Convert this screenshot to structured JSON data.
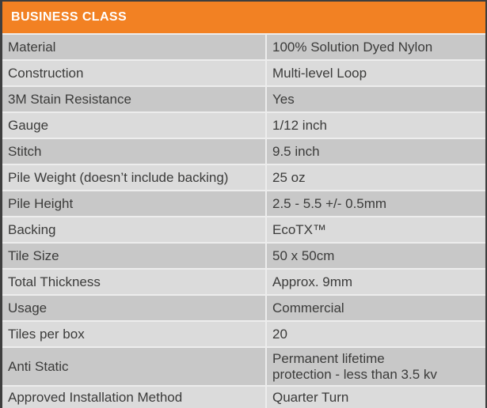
{
  "colors": {
    "header_bg": "#F28123",
    "header_text": "#FFFFFF",
    "row_dark": "#C8C8C8",
    "row_light": "#DBDBDB",
    "text": "#3B3B3A",
    "divider": "#EDEDED",
    "frame": "#3E3E3E"
  },
  "table": {
    "title": "BUSINESS CLASS",
    "rows": [
      {
        "label": "Material",
        "value": "100% Solution Dyed Nylon"
      },
      {
        "label": "Construction",
        "value": "Multi-level Loop"
      },
      {
        "label": "3M Stain Resistance",
        "value": "Yes"
      },
      {
        "label": "Gauge",
        "value": "1/12 inch"
      },
      {
        "label": "Stitch",
        "value": "9.5 inch"
      },
      {
        "label": "Pile Weight (doesn’t include backing)",
        "value": "25 oz"
      },
      {
        "label": "Pile Height",
        "value": "2.5 - 5.5 +/- 0.5mm"
      },
      {
        "label": "Backing",
        "value": "EcoTX™"
      },
      {
        "label": "Tile Size",
        "value": "50 x 50cm"
      },
      {
        "label": "Total Thickness",
        "value": "Approx. 9mm"
      },
      {
        "label": "Usage",
        "value": "Commercial"
      },
      {
        "label": "Tiles per box",
        "value": "20"
      },
      {
        "label": "Anti Static",
        "value": "Permanent lifetime protection - less than 3.5 kv"
      },
      {
        "label": "Approved Installation Method",
        "value": "Quarter Turn"
      }
    ]
  }
}
